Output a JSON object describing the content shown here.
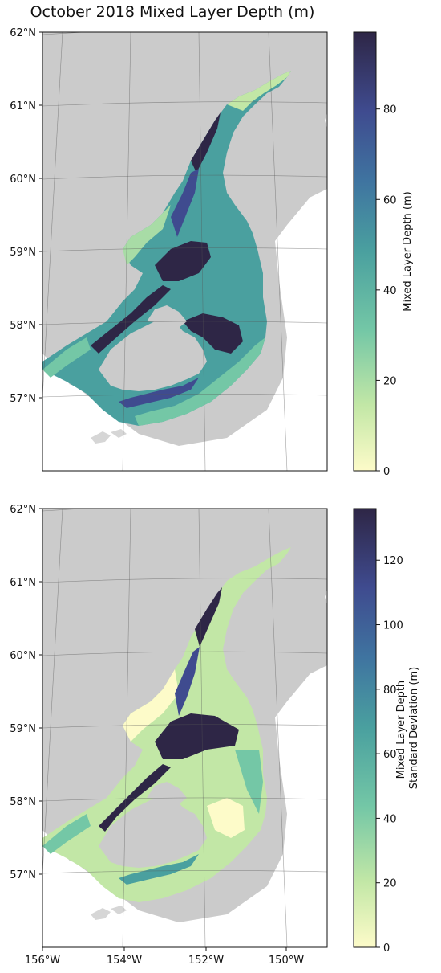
{
  "title": "October 2018 Mixed Layer Depth (m)",
  "colors": {
    "land": "#cbcbcb",
    "gridline": "#555555",
    "islands": "#e8e8e8",
    "colormap": [
      "#fdfbc9",
      "#c2e7a6",
      "#74c7a6",
      "#4aa09f",
      "#3f74a0",
      "#3f4b8f",
      "#2e2646"
    ]
  },
  "lat_labels": [
    "62°N",
    "61°N",
    "60°N",
    "59°N",
    "58°N",
    "57°N"
  ],
  "lon_labels": [
    "156°W",
    "154°W",
    "152°W",
    "150°W"
  ],
  "panels": [
    {
      "colorbar_label": [
        "Mixed Layer Depth (m)"
      ],
      "colorbar_ticks": [
        "0",
        "20",
        "40",
        "60",
        "80"
      ],
      "colorbar_max": 97
    },
    {
      "colorbar_label": [
        "Mixed Layer Depth",
        "Standard Deviation (m)"
      ],
      "colorbar_ticks": [
        "0",
        "20",
        "40",
        "60",
        "80",
        "100",
        "120"
      ],
      "colorbar_max": 136
    }
  ]
}
